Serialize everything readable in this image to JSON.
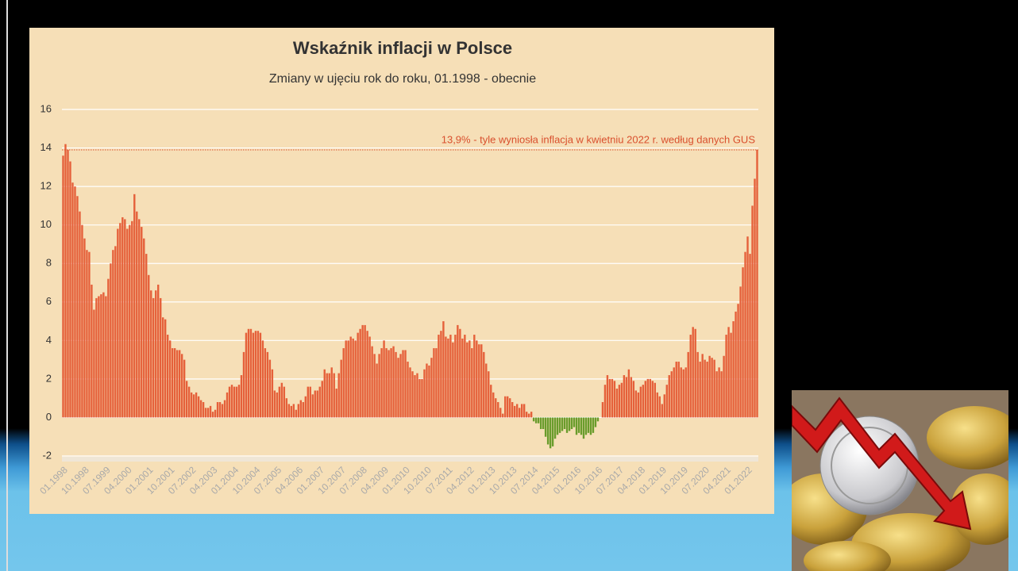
{
  "chart_data": {
    "type": "bar",
    "title": "Wskaźnik inflacji w Polsce",
    "subtitle": "Zmiany w ujęciu rok do roku, 01.1998 - obecnie",
    "color": "#e5603a",
    "negative_color": "#6a9c2c",
    "grid": true,
    "ylim": [
      -2,
      16
    ],
    "yticks": [
      -2,
      0,
      2,
      4,
      6,
      8,
      10,
      12,
      14,
      16
    ],
    "reference_line": {
      "value": 13.9,
      "label": "13,9% - tyle wyniosła inflacja w kwietniu 2022 r. według danych GUS",
      "color": "#d9502e"
    },
    "categories": [
      "01.1998",
      null,
      null,
      null,
      null,
      null,
      null,
      null,
      null,
      "10.1998",
      null,
      null,
      null,
      null,
      null,
      null,
      null,
      null,
      "07.1999",
      null,
      null,
      null,
      null,
      null,
      null,
      null,
      null,
      "04.2000",
      null,
      null,
      null,
      null,
      null,
      null,
      null,
      null,
      "01.2001",
      null,
      null,
      null,
      null,
      null,
      null,
      null,
      null,
      "10.2001",
      null,
      null,
      null,
      null,
      null,
      null,
      null,
      null,
      "07.2002",
      null,
      null,
      null,
      null,
      null,
      null,
      null,
      null,
      "04.2003",
      null,
      null,
      null,
      null,
      null,
      null,
      null,
      null,
      "01.2004",
      null,
      null,
      null,
      null,
      null,
      null,
      null,
      null,
      "10.2004",
      null,
      null,
      null,
      null,
      null,
      null,
      null,
      null,
      "07.2005",
      null,
      null,
      null,
      null,
      null,
      null,
      null,
      null,
      "04.2006",
      null,
      null,
      null,
      null,
      null,
      null,
      null,
      null,
      "01.2007",
      null,
      null,
      null,
      null,
      null,
      null,
      null,
      null,
      "10.2007",
      null,
      null,
      null,
      null,
      null,
      null,
      null,
      null,
      "07.2008",
      null,
      null,
      null,
      null,
      null,
      null,
      null,
      null,
      "04.2009",
      null,
      null,
      null,
      null,
      null,
      null,
      null,
      null,
      "01.2010",
      null,
      null,
      null,
      null,
      null,
      null,
      null,
      null,
      "10.2010",
      null,
      null,
      null,
      null,
      null,
      null,
      null,
      null,
      "07.2011",
      null,
      null,
      null,
      null,
      null,
      null,
      null,
      null,
      "04.2012",
      null,
      null,
      null,
      null,
      null,
      null,
      null,
      null,
      "01.2013",
      null,
      null,
      null,
      null,
      null,
      null,
      null,
      null,
      "10.2013",
      null,
      null,
      null,
      null,
      null,
      null,
      null,
      null,
      "07.2014",
      null,
      null,
      null,
      null,
      null,
      null,
      null,
      null,
      "04.2015",
      null,
      null,
      null,
      null,
      null,
      null,
      null,
      null,
      "01.2016",
      null,
      null,
      null,
      null,
      null,
      null,
      null,
      null,
      "10.2016",
      null,
      null,
      null,
      null,
      null,
      null,
      null,
      null,
      "07.2017",
      null,
      null,
      null,
      null,
      null,
      null,
      null,
      null,
      "04.2018",
      null,
      null,
      null,
      null,
      null,
      null,
      null,
      null,
      "01.2019",
      null,
      null,
      null,
      null,
      null,
      null,
      null,
      null,
      "10.2019",
      null,
      null,
      null,
      null,
      null,
      null,
      null,
      null,
      "07.2020",
      null,
      null,
      null,
      null,
      null,
      null,
      null,
      null,
      "04.2021",
      null,
      null,
      null,
      null,
      null,
      null,
      null,
      null,
      "01.2022",
      null,
      null,
      null,
      null
    ],
    "values": [
      13.6,
      14.2,
      13.9,
      13.3,
      12.2,
      12.0,
      11.5,
      10.7,
      10.0,
      9.3,
      8.7,
      8.6,
      6.9,
      5.6,
      6.2,
      6.3,
      6.4,
      6.5,
      6.3,
      7.2,
      8.0,
      8.7,
      8.9,
      9.8,
      10.1,
      10.4,
      10.3,
      9.8,
      10.0,
      10.2,
      11.6,
      10.7,
      10.3,
      9.9,
      9.3,
      8.5,
      7.4,
      6.6,
      6.2,
      6.6,
      6.9,
      6.2,
      5.2,
      5.1,
      4.3,
      4.0,
      3.6,
      3.6,
      3.5,
      3.5,
      3.3,
      3.0,
      1.9,
      1.6,
      1.3,
      1.2,
      1.3,
      1.1,
      0.9,
      0.8,
      0.5,
      0.5,
      0.6,
      0.3,
      0.4,
      0.8,
      0.8,
      0.7,
      0.9,
      1.3,
      1.6,
      1.7,
      1.6,
      1.6,
      1.7,
      2.2,
      3.4,
      4.4,
      4.6,
      4.6,
      4.4,
      4.5,
      4.5,
      4.4,
      4.0,
      3.6,
      3.4,
      3.0,
      2.5,
      1.4,
      1.3,
      1.6,
      1.8,
      1.6,
      1.0,
      0.7,
      0.6,
      0.7,
      0.4,
      0.7,
      0.9,
      0.8,
      1.1,
      1.6,
      1.6,
      1.2,
      1.4,
      1.4,
      1.6,
      1.9,
      2.5,
      2.3,
      2.3,
      2.6,
      2.3,
      1.5,
      2.3,
      3.0,
      3.6,
      4.0,
      4.0,
      4.2,
      4.1,
      4.0,
      4.4,
      4.6,
      4.8,
      4.8,
      4.5,
      4.2,
      3.7,
      3.3,
      2.8,
      3.3,
      3.6,
      4.0,
      3.6,
      3.5,
      3.6,
      3.7,
      3.4,
      3.1,
      3.3,
      3.5,
      3.5,
      2.9,
      2.6,
      2.4,
      2.2,
      2.3,
      2.0,
      2.0,
      2.5,
      2.8,
      2.7,
      3.1,
      3.6,
      3.6,
      4.3,
      4.5,
      5.0,
      4.2,
      4.1,
      4.3,
      3.9,
      4.3,
      4.8,
      4.6,
      4.1,
      4.3,
      3.9,
      4.0,
      3.6,
      4.3,
      4.0,
      3.8,
      3.8,
      3.4,
      2.8,
      2.4,
      1.7,
      1.3,
      1.0,
      0.8,
      0.5,
      0.2,
      1.1,
      1.1,
      1.0,
      0.8,
      0.6,
      0.7,
      0.5,
      0.7,
      0.7,
      0.3,
      0.2,
      0.3,
      -0.2,
      -0.3,
      -0.3,
      -0.6,
      -0.6,
      -1.0,
      -1.4,
      -1.6,
      -1.5,
      -1.1,
      -0.9,
      -0.8,
      -0.7,
      -0.6,
      -0.8,
      -0.7,
      -0.6,
      -0.5,
      -0.9,
      -0.8,
      -0.9,
      -1.1,
      -0.9,
      -0.8,
      -0.9,
      -0.8,
      -0.5,
      -0.2,
      0.0,
      0.8,
      1.7,
      2.2,
      2.0,
      2.0,
      1.9,
      1.5,
      1.7,
      1.8,
      2.2,
      2.1,
      2.5,
      2.1,
      1.9,
      1.4,
      1.3,
      1.6,
      1.7,
      1.9,
      2.0,
      2.0,
      1.9,
      1.8,
      1.3,
      1.1,
      0.7,
      1.2,
      1.7,
      2.2,
      2.4,
      2.6,
      2.9,
      2.9,
      2.6,
      2.5,
      2.6,
      3.4,
      4.3,
      4.7,
      4.6,
      3.4,
      2.9,
      3.3,
      3.0,
      2.9,
      3.2,
      3.1,
      3.0,
      2.4,
      2.6,
      2.4,
      3.2,
      4.3,
      4.7,
      4.4,
      5.0,
      5.5,
      5.9,
      6.8,
      7.8,
      8.6,
      9.4,
      8.5,
      11.0,
      12.4,
      13.9
    ]
  }
}
